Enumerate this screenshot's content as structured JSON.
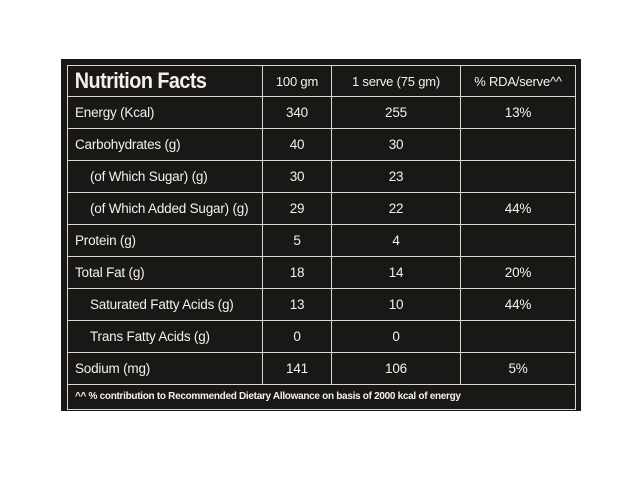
{
  "title": "Nutrition Facts",
  "columns": [
    "100 gm",
    "1 serve (75 gm)",
    "% RDA/serve^^"
  ],
  "rows": [
    {
      "label": "Energy (Kcal)",
      "per100": "340",
      "perServe": "255",
      "rda": "13%"
    },
    {
      "label": "Carbohydrates (g)",
      "per100": "40",
      "perServe": "30",
      "rda": ""
    },
    {
      "label": "(of Which Sugar) (g)",
      "per100": "30",
      "perServe": "23",
      "rda": ""
    },
    {
      "label": "(of Which Added Sugar) (g)",
      "per100": "29",
      "perServe": "22",
      "rda": "44%"
    },
    {
      "label": "Protein (g)",
      "per100": "5",
      "perServe": "4",
      "rda": ""
    },
    {
      "label": "Total Fat (g)",
      "per100": "18",
      "perServe": "14",
      "rda": "20%"
    },
    {
      "label": "Saturated Fatty Acids (g)",
      "per100": "13",
      "perServe": "10",
      "rda": "44%"
    },
    {
      "label": "Trans Fatty Acids (g)",
      "per100": "0",
      "perServe": "0",
      "rda": ""
    },
    {
      "label": "Sodium (mg)",
      "per100": "141",
      "perServe": "106",
      "rda": "5%"
    }
  ],
  "footnote": "^^ % contribution to Recommended Dietary Allowance on basis of 2000 kcal of energy",
  "colors": {
    "background": "#1a1817",
    "text": "#f4f1ec",
    "rule": "#d9d6d0"
  }
}
